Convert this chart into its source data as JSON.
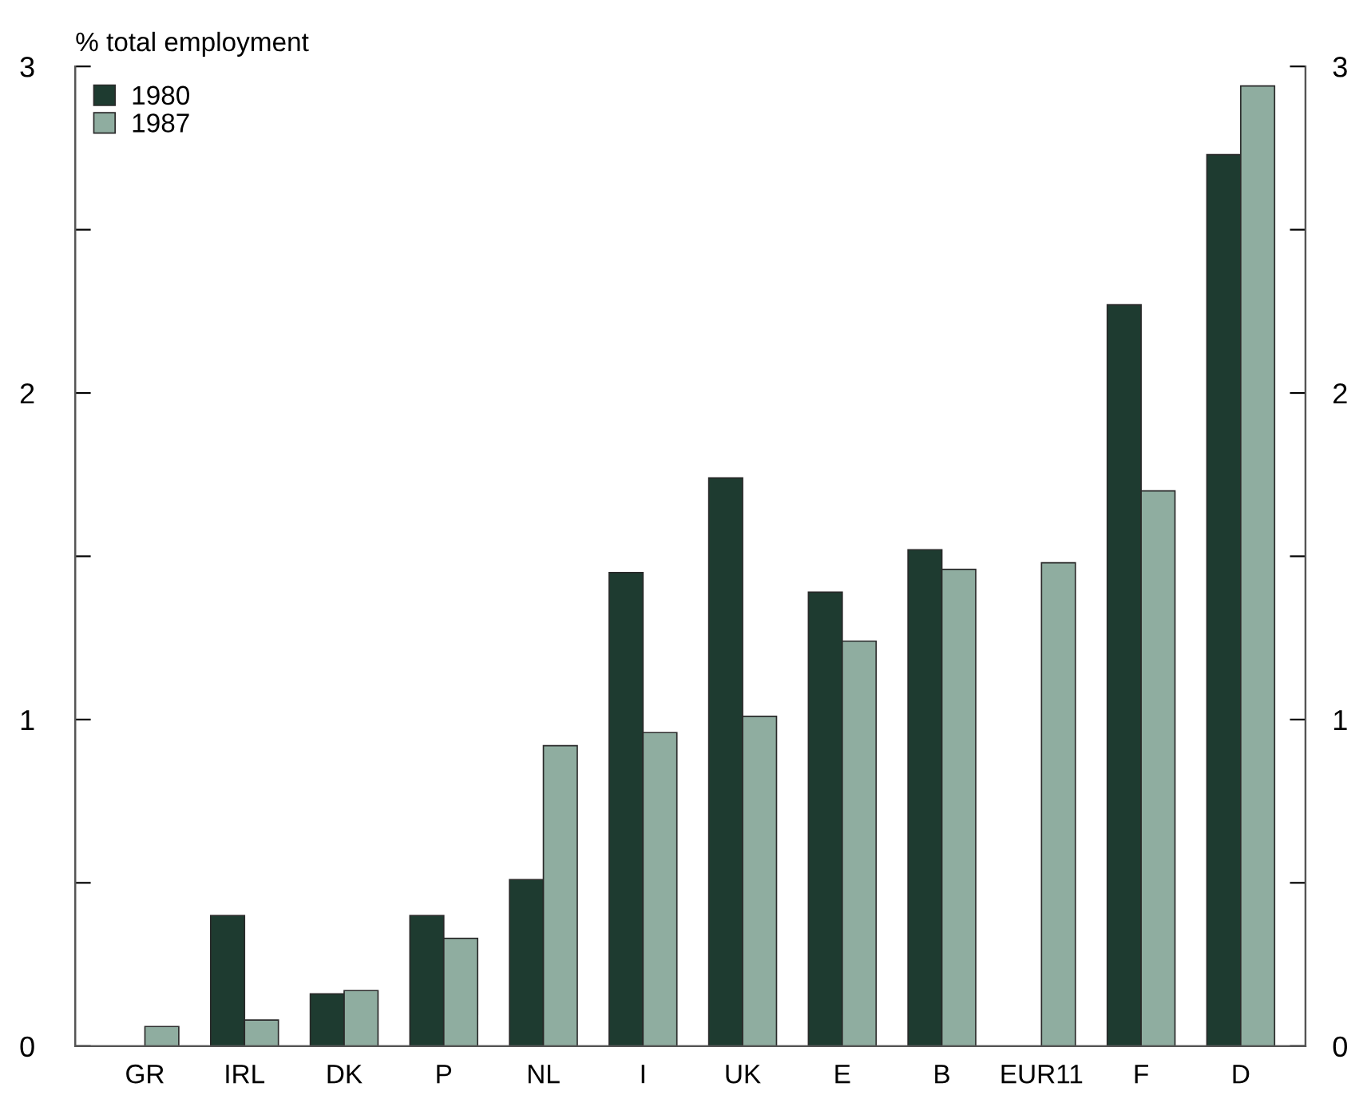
{
  "chart_data": {
    "type": "bar",
    "ylabel": "% total employment",
    "categories": [
      "GR",
      "IRL",
      "DK",
      "P",
      "NL",
      "I",
      "UK",
      "E",
      "B",
      "EUR11",
      "F",
      "D"
    ],
    "series": [
      {
        "name": "1980",
        "color": "#1e3b30",
        "values": [
          null,
          0.4,
          0.16,
          0.4,
          0.51,
          1.45,
          1.74,
          1.39,
          1.52,
          null,
          2.27,
          2.73
        ]
      },
      {
        "name": "1987",
        "color": "#8fada0",
        "values": [
          0.06,
          0.08,
          0.17,
          0.33,
          0.92,
          0.96,
          1.01,
          1.24,
          1.46,
          1.48,
          1.7,
          2.94
        ]
      }
    ],
    "ylim": [
      0,
      3
    ],
    "yticks": [
      0,
      {
        "value": 0.5,
        "label": null
      },
      1,
      {
        "value": 1.5,
        "label": null
      },
      2,
      {
        "value": 2.5,
        "label": null
      },
      3
    ],
    "y2lim": [
      0,
      3
    ],
    "y2ticks": [
      0,
      {
        "value": 0.5,
        "label": null
      },
      1,
      {
        "value": 1.5,
        "label": null
      },
      2,
      {
        "value": 2.5,
        "label": null
      },
      3
    ],
    "legend": "top left",
    "grid": false
  }
}
